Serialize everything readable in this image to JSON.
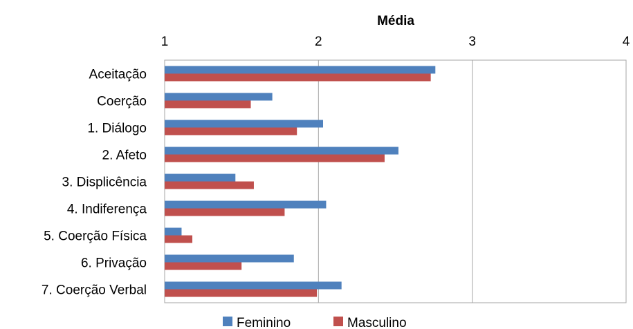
{
  "chart_data": {
    "type": "bar",
    "orientation": "horizontal",
    "xlabel": "Média",
    "xaxis_position": "top",
    "xlim": [
      1,
      4
    ],
    "xticks": [
      "1",
      "2",
      "3",
      "4"
    ],
    "grid": true,
    "legend_position": "bottom",
    "categories": [
      "Aceitação",
      "Coerção",
      "1. Diálogo",
      "2. Afeto",
      "3. Displicência",
      "4. Indiferença",
      "5. Coerção Física",
      "6. Privação",
      "7. Coerção Verbal"
    ],
    "series": [
      {
        "name": "Feminino",
        "color": "#4f81bd",
        "values": [
          2.76,
          1.7,
          2.03,
          2.52,
          1.46,
          2.05,
          1.11,
          1.84,
          2.15
        ]
      },
      {
        "name": "Masculino",
        "color": "#c0504d",
        "values": [
          2.73,
          1.56,
          1.86,
          2.43,
          1.58,
          1.78,
          1.18,
          1.5,
          1.99
        ]
      }
    ]
  }
}
